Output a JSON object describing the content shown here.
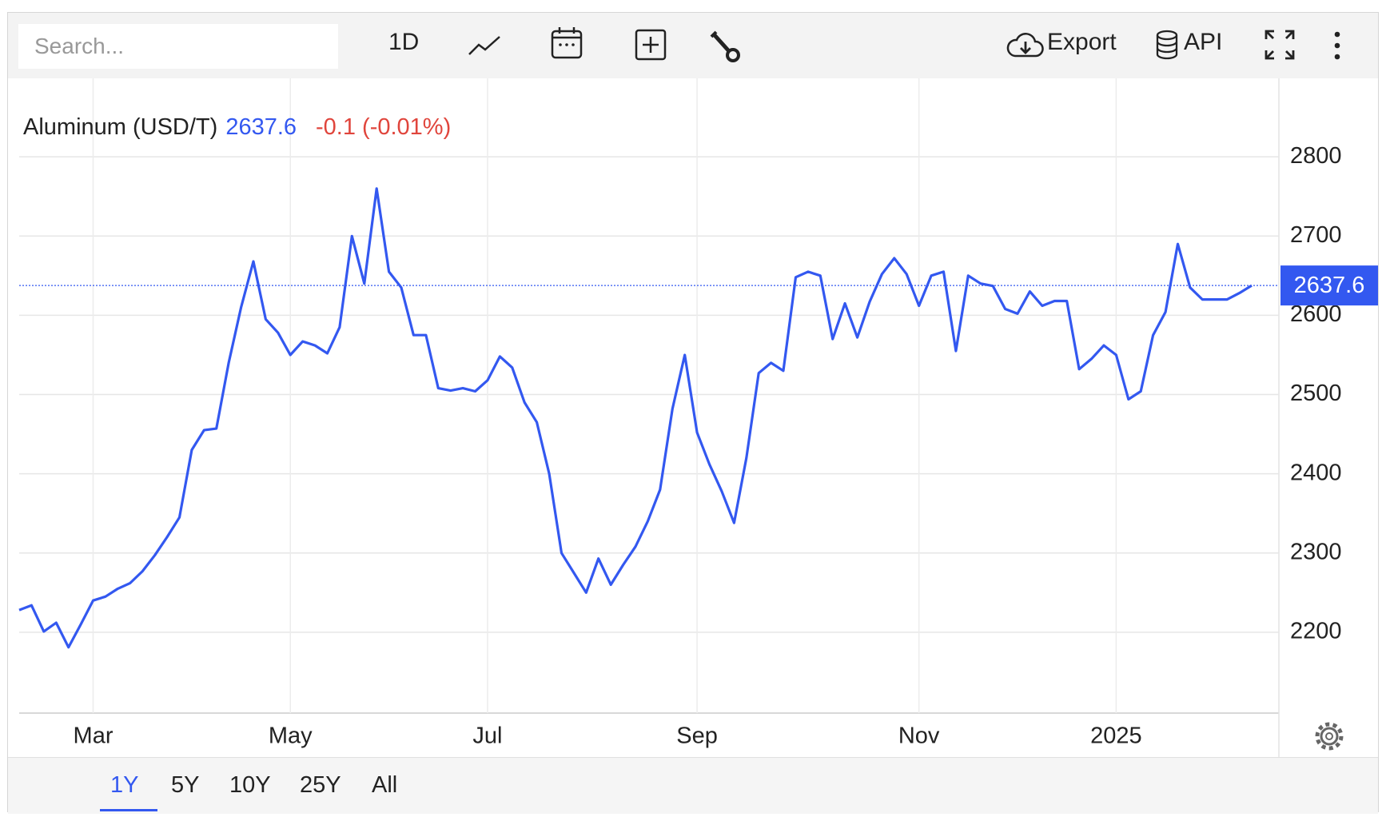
{
  "toolbar": {
    "search_placeholder": "Search...",
    "interval": "1D",
    "export": "Export",
    "api": "API"
  },
  "ranges": [
    "1Y",
    "5Y",
    "10Y",
    "25Y",
    "All"
  ],
  "chart_data": {
    "type": "line",
    "change_label": "-0.1 (-0.01%)",
    "categories": [
      null,
      null,
      null,
      null,
      null,
      null,
      "Mar",
      null,
      null,
      null,
      null,
      null,
      null,
      null,
      null,
      null,
      null,
      null,
      null,
      null,
      null,
      null,
      "May",
      null,
      null,
      null,
      null,
      null,
      null,
      null,
      null,
      null,
      null,
      null,
      null,
      null,
      null,
      null,
      "Jul",
      null,
      null,
      null,
      null,
      null,
      null,
      null,
      null,
      null,
      null,
      null,
      null,
      null,
      null,
      null,
      null,
      "Sep",
      null,
      null,
      null,
      null,
      null,
      null,
      null,
      null,
      null,
      null,
      null,
      null,
      null,
      null,
      null,
      null,
      null,
      "Nov",
      null,
      null,
      null,
      null,
      null,
      null,
      null,
      null,
      null,
      null,
      null,
      null,
      null,
      null,
      null,
      "2025",
      null,
      null,
      null,
      null,
      null,
      null,
      null,
      null,
      null,
      null,
      null
    ],
    "series": [
      {
        "name": "Aluminum (USD/T)",
        "color": "#3358f0",
        "values": [
          2228,
          2234,
          2201,
          2212,
          2181,
          2210,
          2240,
          2245,
          2255,
          2262,
          2277,
          2297,
          2320,
          2345,
          2430,
          2455,
          2457,
          2540,
          2610,
          2668,
          2595,
          2578,
          2550,
          2567,
          2562,
          2552,
          2585,
          2700,
          2640,
          2760,
          2655,
          2635,
          2575,
          2575,
          2508,
          2505,
          2508,
          2504,
          2518,
          2548,
          2534,
          2490,
          2465,
          2400,
          2300,
          2275,
          2250,
          2293,
          2260,
          2285,
          2308,
          2340,
          2380,
          2482,
          2550,
          2452,
          2412,
          2378,
          2338,
          2420,
          2527,
          2540,
          2530,
          2648,
          2655,
          2650,
          2570,
          2615,
          2572,
          2617,
          2652,
          2672,
          2652,
          2612,
          2650,
          2655,
          2555,
          2650,
          2640,
          2637,
          2608,
          2602,
          2630,
          2612,
          2618,
          2618,
          2532,
          2545,
          2562,
          2550,
          2494,
          2504,
          2575,
          2604,
          2690,
          2635,
          2620,
          2620,
          2620,
          2628,
          2637.6
        ]
      }
    ],
    "ylim": [
      2098,
      2899
    ],
    "yticks": [
      2200,
      2300,
      2400,
      2500,
      2600,
      2700,
      2800
    ],
    "grid": true,
    "change_color": "#e0453c"
  }
}
